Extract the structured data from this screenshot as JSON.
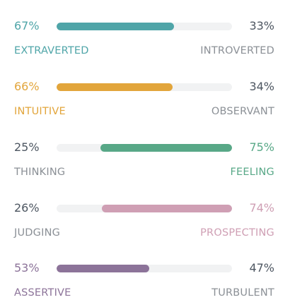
{
  "traits": [
    {
      "left_percent": "67%",
      "right_percent": "33%",
      "left_label": "EXTRAVERTED",
      "right_label": "INTROVERTED",
      "dominant": "left",
      "fill_fraction": 0.67,
      "color": "#4fa5a8"
    },
    {
      "left_percent": "66%",
      "right_percent": "34%",
      "left_label": "INTUITIVE",
      "right_label": "OBSERVANT",
      "dominant": "left",
      "fill_fraction": 0.66,
      "color": "#e2a53b"
    },
    {
      "left_percent": "25%",
      "right_percent": "75%",
      "left_label": "THINKING",
      "right_label": "FEELING",
      "dominant": "right",
      "fill_fraction": 0.75,
      "color": "#58a887"
    },
    {
      "left_percent": "26%",
      "right_percent": "74%",
      "left_label": "JUDGING",
      "right_label": "PROSPECTING",
      "dominant": "right",
      "fill_fraction": 0.74,
      "color": "#cf9fb4"
    },
    {
      "left_percent": "53%",
      "right_percent": "47%",
      "left_label": "ASSERTIVE",
      "right_label": "TURBULENT",
      "dominant": "left",
      "fill_fraction": 0.53,
      "color": "#8c7399"
    }
  ],
  "neutral_text_color": "#4d5661",
  "neutral_label_color": "#8b9096",
  "track_color": "#f1f2f3"
}
